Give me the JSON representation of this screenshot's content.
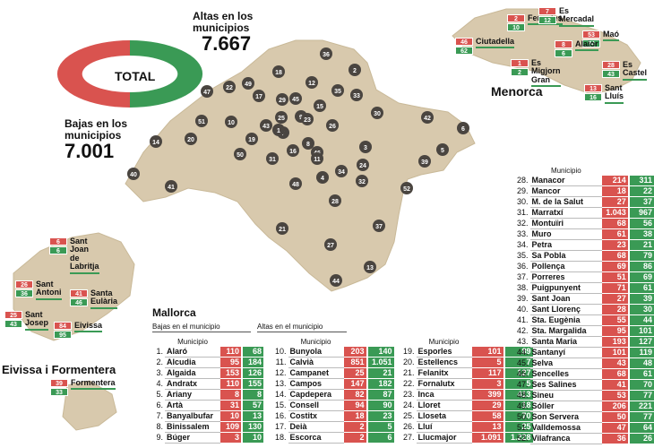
{
  "headline": {
    "altas_label": "Altas en los municipios",
    "altas_value": "7.667",
    "bajas_label": "Bajas en los municipios",
    "bajas_value": "7.001",
    "total_label": "TOTAL"
  },
  "colors": {
    "bajas": "#d9534f",
    "altas": "#3a9a55",
    "land": "#d8c9ad"
  },
  "map_numbers": [
    "36",
    "2",
    "18",
    "12",
    "49",
    "22",
    "47",
    "17",
    "35",
    "33",
    "29",
    "45",
    "15",
    "9",
    "25",
    "7",
    "10",
    "51",
    "23",
    "26",
    "30",
    "42",
    "6",
    "14",
    "20",
    "19",
    "43",
    "1",
    "8",
    "16",
    "46",
    "48",
    "3",
    "5",
    "50",
    "31",
    "41",
    "11",
    "24",
    "34",
    "39",
    "40",
    "4",
    "32",
    "52",
    "28",
    "37",
    "21",
    "27",
    "13",
    "44"
  ],
  "menorca": {
    "name": "Menorca",
    "items": [
      {
        "name": "Ferreries",
        "baja": "2",
        "alta": "10"
      },
      {
        "name": "Es Mercadal",
        "baja": "7",
        "alta": "12"
      },
      {
        "name": "Ciutadella",
        "baja": "46",
        "alta": "62"
      },
      {
        "name": "Maó",
        "baja": "53",
        "alta": "74"
      },
      {
        "name": "Alaior",
        "baja": "8",
        "alta": "6"
      },
      {
        "name": "Es Migjorn Gran",
        "baja": "1",
        "alta": "2"
      },
      {
        "name": "Es Castel",
        "baja": "28",
        "alta": "43"
      },
      {
        "name": "Sant Lluís",
        "baja": "13",
        "alta": "16"
      }
    ]
  },
  "eivissa": {
    "name": "Eivissa i Formentera",
    "items": [
      {
        "name": "Sant Joan de Labritja",
        "baja": "6",
        "alta": "6"
      },
      {
        "name": "Sant Antoni",
        "baja": "26",
        "alta": "36"
      },
      {
        "name": "Santa Eulària",
        "baja": "41",
        "alta": "46"
      },
      {
        "name": "Sant Josep",
        "baja": "25",
        "alta": "43"
      },
      {
        "name": "Eivissa",
        "baja": "84",
        "alta": "95"
      },
      {
        "name": "Formentera",
        "baja": "39",
        "alta": "33"
      }
    ]
  },
  "mallorca": {
    "name": "Mallorca",
    "bajas_sub": "Bajas en el municipio",
    "altas_sub": "Altas en el municipio",
    "col_header": "Municipio",
    "rows": [
      {
        "n": "1.",
        "m": "Alaró",
        "b": "110",
        "a": "68"
      },
      {
        "n": "2.",
        "m": "Alcudia",
        "b": "95",
        "a": "184"
      },
      {
        "n": "3.",
        "m": "Algaida",
        "b": "153",
        "a": "126"
      },
      {
        "n": "4.",
        "m": "Andratx",
        "b": "110",
        "a": "155"
      },
      {
        "n": "5.",
        "m": "Ariany",
        "b": "8",
        "a": "8"
      },
      {
        "n": "6.",
        "m": "Artà",
        "b": "31",
        "a": "57"
      },
      {
        "n": "7.",
        "m": "Banyalbufar",
        "b": "10",
        "a": "13"
      },
      {
        "n": "8.",
        "m": "Binissalem",
        "b": "109",
        "a": "130"
      },
      {
        "n": "9.",
        "m": "Búger",
        "b": "3",
        "a": "10"
      },
      {
        "n": "10.",
        "m": "Bunyola",
        "b": "203",
        "a": "140"
      },
      {
        "n": "11.",
        "m": "Calvià",
        "b": "851",
        "a": "1.051"
      },
      {
        "n": "12.",
        "m": "Campanet",
        "b": "25",
        "a": "21"
      },
      {
        "n": "13.",
        "m": "Campos",
        "b": "147",
        "a": "182"
      },
      {
        "n": "14.",
        "m": "Capdepera",
        "b": "82",
        "a": "87"
      },
      {
        "n": "15.",
        "m": "Consell",
        "b": "94",
        "a": "90"
      },
      {
        "n": "16.",
        "m": "Costitx",
        "b": "18",
        "a": "23"
      },
      {
        "n": "17.",
        "m": "Deià",
        "b": "2",
        "a": "5"
      },
      {
        "n": "18.",
        "m": "Escorca",
        "b": "2",
        "a": "6"
      },
      {
        "n": "19.",
        "m": "Esporles",
        "b": "101",
        "a": "89"
      },
      {
        "n": "20.",
        "m": "Estellencs",
        "b": "5",
        "a": "7"
      },
      {
        "n": "21.",
        "m": "Felanitx",
        "b": "117",
        "a": "127"
      },
      {
        "n": "22.",
        "m": "Fornalutx",
        "b": "3",
        "a": "5"
      },
      {
        "n": "23.",
        "m": "Inca",
        "b": "399",
        "a": "413"
      },
      {
        "n": "24.",
        "m": "Lloret",
        "b": "29",
        "a": "18"
      },
      {
        "n": "25.",
        "m": "Lloseta",
        "b": "58",
        "a": "70"
      },
      {
        "n": "26.",
        "m": "Lluí",
        "b": "13",
        "a": "25"
      },
      {
        "n": "27.",
        "m": "Llucmajor",
        "b": "1.091",
        "a": "1.228"
      },
      {
        "n": "28.",
        "m": "Manacor",
        "b": "214",
        "a": "311"
      },
      {
        "n": "29.",
        "m": "Mancor",
        "b": "18",
        "a": "22"
      },
      {
        "n": "30.",
        "m": "M. de la Salut",
        "b": "27",
        "a": "37"
      },
      {
        "n": "31.",
        "m": "Marratxí",
        "b": "1.043",
        "a": "967"
      },
      {
        "n": "32.",
        "m": "Montuïri",
        "b": "68",
        "a": "56"
      },
      {
        "n": "33.",
        "m": "Muro",
        "b": "61",
        "a": "38"
      },
      {
        "n": "34.",
        "m": "Petra",
        "b": "23",
        "a": "21"
      },
      {
        "n": "35.",
        "m": "Sa Pobla",
        "b": "68",
        "a": "79"
      },
      {
        "n": "36.",
        "m": "Pollença",
        "b": "69",
        "a": "86"
      },
      {
        "n": "37.",
        "m": "Porreres",
        "b": "51",
        "a": "69"
      },
      {
        "n": "38.",
        "m": "Puigpunyent",
        "b": "71",
        "a": "61"
      },
      {
        "n": "39.",
        "m": "Sant Joan",
        "b": "27",
        "a": "39"
      },
      {
        "n": "40.",
        "m": "Sant Llorenç",
        "b": "28",
        "a": "30"
      },
      {
        "n": "41.",
        "m": "Sta. Eugènia",
        "b": "55",
        "a": "44"
      },
      {
        "n": "42.",
        "m": "Sta. Margalida",
        "b": "95",
        "a": "101"
      },
      {
        "n": "43.",
        "m": "Santa Maria",
        "b": "193",
        "a": "127"
      },
      {
        "n": "44.",
        "m": "Santanyí",
        "b": "101",
        "a": "119"
      },
      {
        "n": "45.",
        "m": "Selva",
        "b": "43",
        "a": "48"
      },
      {
        "n": "46.",
        "m": "Sencelles",
        "b": "68",
        "a": "61"
      },
      {
        "n": "47.",
        "m": "Ses Salines",
        "b": "41",
        "a": "70"
      },
      {
        "n": "48.",
        "m": "Sineu",
        "b": "53",
        "a": "77"
      },
      {
        "n": "49.",
        "m": "Sóller",
        "b": "206",
        "a": "221"
      },
      {
        "n": "50.",
        "m": "Son Servera",
        "b": "50",
        "a": "77"
      },
      {
        "n": "51.",
        "m": "Valldemossa",
        "b": "47",
        "a": "64"
      },
      {
        "n": "52.",
        "m": "Vilafranca",
        "b": "36",
        "a": "26"
      }
    ]
  }
}
